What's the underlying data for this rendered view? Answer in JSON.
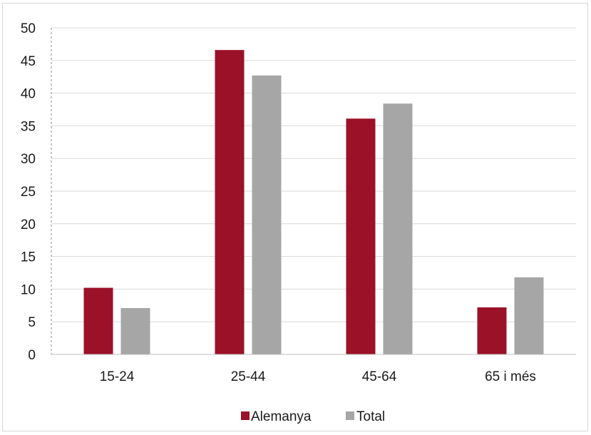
{
  "chart_data": {
    "type": "bar",
    "categories": [
      "15-24",
      "25-44",
      "45-64",
      "65 i més"
    ],
    "series": [
      {
        "name": "Alemanya",
        "values": [
          10.2,
          46.6,
          36.1,
          7.2
        ],
        "color": "#9b1128"
      },
      {
        "name": "Total",
        "values": [
          7.1,
          42.7,
          38.4,
          11.8
        ],
        "color": "#a6a6a6"
      }
    ],
    "y_ticks": [
      "0",
      "5",
      "10",
      "15",
      "20",
      "25",
      "30",
      "35",
      "40",
      "45",
      "50"
    ],
    "ylim": [
      0,
      50
    ],
    "grid": true,
    "legend_position": "bottom-center"
  }
}
